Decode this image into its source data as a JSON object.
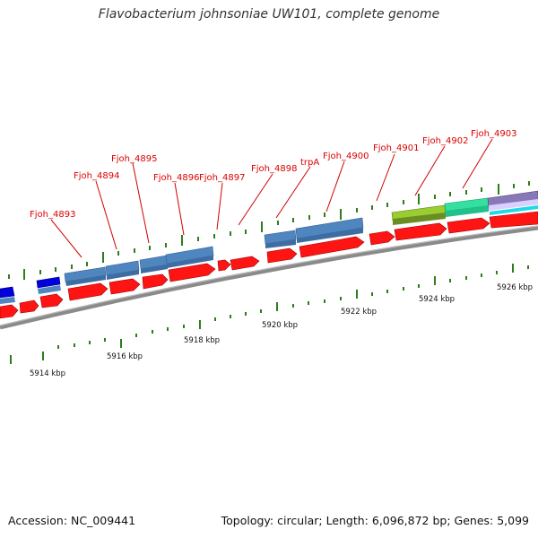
{
  "title": "Flavobacterium johnsoniae UW101, complete genome",
  "footer": {
    "accession": "Accession: NC_009441",
    "summary": "Topology: circular; Length: 6,096,872 bp; Genes: 5,099"
  },
  "ticks": [
    "5914 kbp",
    "5916 kbp",
    "5918 kbp",
    "5920 kbp",
    "5922 kbp",
    "5924 kbp",
    "5926 kbp"
  ],
  "gene_labels": [
    "Fjoh_4893",
    "Fjoh_4894",
    "Fjoh_4895",
    "Fjoh_4896",
    "Fjoh_4897",
    "Fjoh_4898",
    "trpA",
    "Fjoh_4900",
    "Fjoh_4901",
    "Fjoh_4902",
    "Fjoh_4903"
  ],
  "colors": {
    "gene": "#ff1414",
    "protein": "#4f86c0",
    "label": "#dd0000",
    "backbone": "#8a8a8a",
    "tick": "#2e7d1a",
    "blue_feature": "#0000dd",
    "lime_feature": "#9acd32",
    "teal_feature": "#33e0a0",
    "purple_feature": "#8878b8"
  }
}
